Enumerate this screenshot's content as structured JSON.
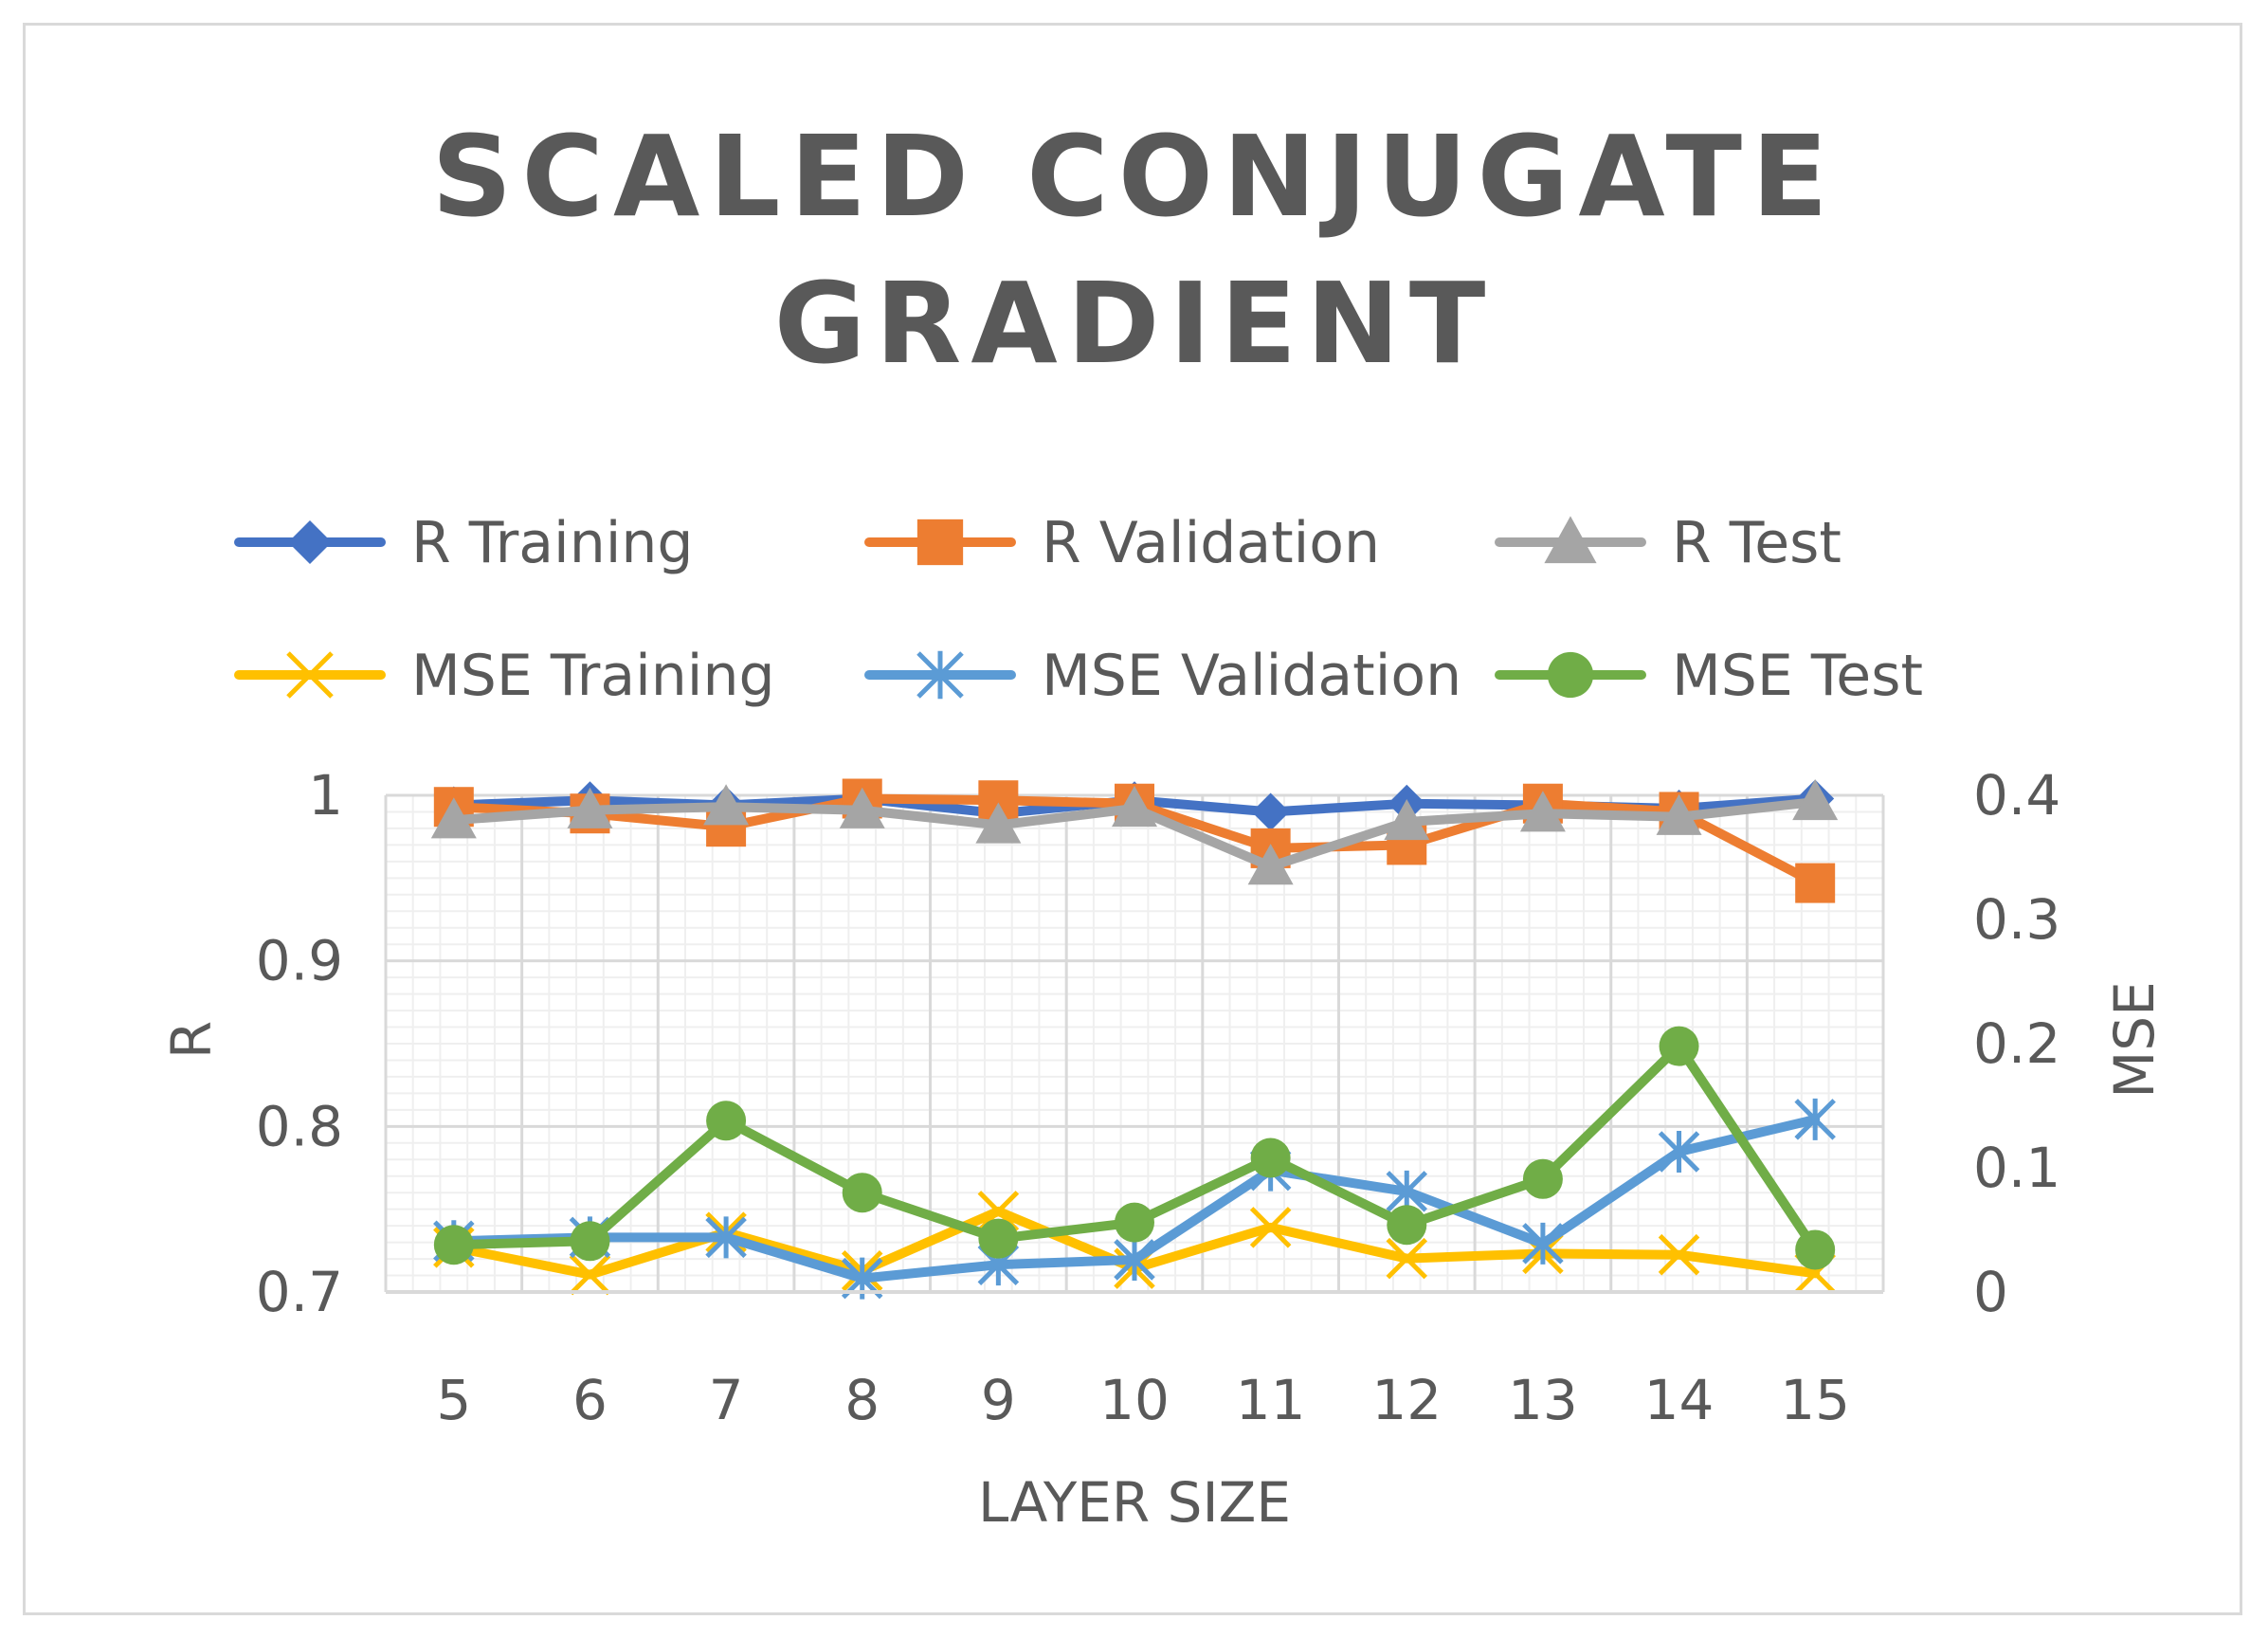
{
  "chart_data": {
    "type": "line",
    "title_lines": [
      "SCALED CONJUGATE",
      "GRADIENT"
    ],
    "xlabel": "LAYER SIZE",
    "ylabel_left": "R",
    "ylabel_right": "MSE",
    "categories": [
      "5",
      "6",
      "7",
      "8",
      "9",
      "10",
      "11",
      "12",
      "13",
      "14",
      "15"
    ],
    "y_left": {
      "min": 0.7,
      "max": 1.0,
      "ticks": [
        0.7,
        0.8,
        0.9,
        1
      ],
      "tick_labels": [
        "0.7",
        "0.8",
        "0.9",
        "1"
      ]
    },
    "y_right": {
      "min": 0,
      "max": 0.4,
      "ticks": [
        0,
        0.1,
        0.2,
        0.3,
        0.4
      ],
      "tick_labels": [
        "0",
        "0.1",
        "0.2",
        "0.3",
        "0.4"
      ]
    },
    "grid": true,
    "legend_position": "top",
    "series": [
      {
        "name": "R Training",
        "axis": "left",
        "color": "#4472c4",
        "marker": "diamond",
        "values": [
          0.994,
          0.997,
          0.994,
          0.998,
          0.989,
          0.997,
          0.99,
          0.995,
          0.994,
          0.992,
          0.998
        ]
      },
      {
        "name": "R Validation",
        "axis": "left",
        "color": "#ed7d31",
        "marker": "square",
        "values": [
          0.993,
          0.989,
          0.981,
          0.998,
          0.997,
          0.995,
          0.968,
          0.97,
          0.995,
          0.99,
          0.947
        ]
      },
      {
        "name": "R Test",
        "axis": "left",
        "color": "#a5a5a5",
        "marker": "triangle",
        "values": [
          0.985,
          0.991,
          0.993,
          0.991,
          0.982,
          0.992,
          0.957,
          0.984,
          0.989,
          0.987,
          0.996
        ]
      },
      {
        "name": "MSE Training",
        "axis": "right",
        "color": "#ffc000",
        "marker": "x",
        "values": [
          0.036,
          0.014,
          0.048,
          0.017,
          0.065,
          0.019,
          0.052,
          0.027,
          0.031,
          0.03,
          0.015
        ]
      },
      {
        "name": "MSE Validation",
        "axis": "right",
        "color": "#5b9bd5",
        "marker": "star",
        "values": [
          0.041,
          0.044,
          0.044,
          0.011,
          0.022,
          0.026,
          0.098,
          0.081,
          0.039,
          0.113,
          0.139
        ]
      },
      {
        "name": "MSE Test",
        "axis": "right",
        "color": "#70ad47",
        "marker": "circle",
        "values": [
          0.038,
          0.041,
          0.138,
          0.08,
          0.043,
          0.056,
          0.108,
          0.054,
          0.091,
          0.198,
          0.034
        ]
      }
    ]
  }
}
